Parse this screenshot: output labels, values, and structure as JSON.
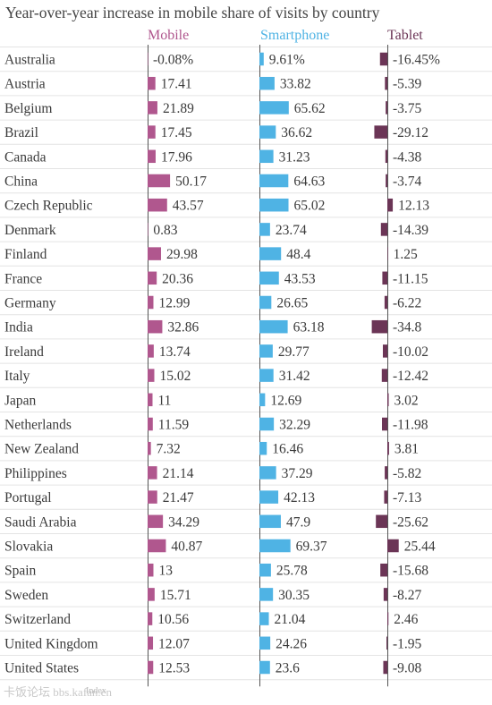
{
  "chart_data": {
    "type": "bar",
    "title": "Year-over-year increase in mobile share of visits by country",
    "categories": [
      "Australia",
      "Austria",
      "Belgium",
      "Brazil",
      "Canada",
      "China",
      "Czech Republic",
      "Denmark",
      "Finland",
      "France",
      "Germany",
      "India",
      "Ireland",
      "Italy",
      "Japan",
      "Netherlands",
      "New Zealand",
      "Philippines",
      "Portugal",
      "Saudi Arabia",
      "Slovakia",
      "Spain",
      "Sweden",
      "Switzerland",
      "United Kingdom",
      "United States"
    ],
    "series": [
      {
        "name": "Mobile",
        "color": "#b0578e",
        "values": [
          -0.08,
          17.41,
          21.89,
          17.45,
          17.96,
          50.17,
          43.57,
          0.83,
          29.98,
          20.36,
          12.99,
          32.86,
          13.74,
          15.02,
          11,
          11.59,
          7.32,
          21.14,
          21.47,
          34.29,
          40.87,
          13,
          15.71,
          10.56,
          12.07,
          12.53
        ],
        "labels": [
          "-0.08%",
          "17.41",
          "21.89",
          "17.45",
          "17.96",
          "50.17",
          "43.57",
          "0.83",
          "29.98",
          "20.36",
          "12.99",
          "32.86",
          "13.74",
          "15.02",
          "11",
          "11.59",
          "7.32",
          "21.14",
          "21.47",
          "34.29",
          "40.87",
          "13",
          "15.71",
          "10.56",
          "12.07",
          "12.53"
        ]
      },
      {
        "name": "Smartphone",
        "color": "#4fb3e4",
        "values": [
          9.61,
          33.82,
          65.62,
          36.62,
          31.23,
          64.63,
          65.02,
          23.74,
          48.4,
          43.53,
          26.65,
          63.18,
          29.77,
          31.42,
          12.69,
          32.29,
          16.46,
          37.29,
          42.13,
          47.9,
          69.37,
          25.78,
          30.35,
          21.04,
          24.26,
          23.6
        ],
        "labels": [
          "9.61%",
          "33.82",
          "65.62",
          "36.62",
          "31.23",
          "64.63",
          "65.02",
          "23.74",
          "48.4",
          "43.53",
          "26.65",
          "63.18",
          "29.77",
          "31.42",
          "12.69",
          "32.29",
          "16.46",
          "37.29",
          "42.13",
          "47.9",
          "69.37",
          "25.78",
          "30.35",
          "21.04",
          "24.26",
          "23.6"
        ]
      },
      {
        "name": "Tablet",
        "color": "#6b3556",
        "values": [
          -16.45,
          -5.39,
          -3.75,
          -29.12,
          -4.38,
          -3.74,
          12.13,
          -14.39,
          1.25,
          -11.15,
          -6.22,
          -34.8,
          -10.02,
          -12.42,
          3.02,
          -11.98,
          3.81,
          -5.82,
          -7.13,
          -25.62,
          25.44,
          -15.68,
          -8.27,
          2.46,
          -1.95,
          -9.08
        ],
        "labels": [
          "-16.45%",
          "-5.39",
          "-3.75",
          "-29.12",
          "-4.38",
          "-3.74",
          "12.13",
          "-14.39",
          "1.25",
          "-11.15",
          "-6.22",
          "-34.8",
          "-10.02",
          "-12.42",
          "3.02",
          "-11.98",
          "3.81",
          "-5.82",
          "-7.13",
          "-25.62",
          "25.44",
          "-15.68",
          "-8.27",
          "2.46",
          "-1.95",
          "-9.08"
        ]
      }
    ],
    "legend": "column headers"
  },
  "footer": {
    "watermark": "卡饭论坛 bbs.kafan.cn",
    "source": "Index"
  }
}
